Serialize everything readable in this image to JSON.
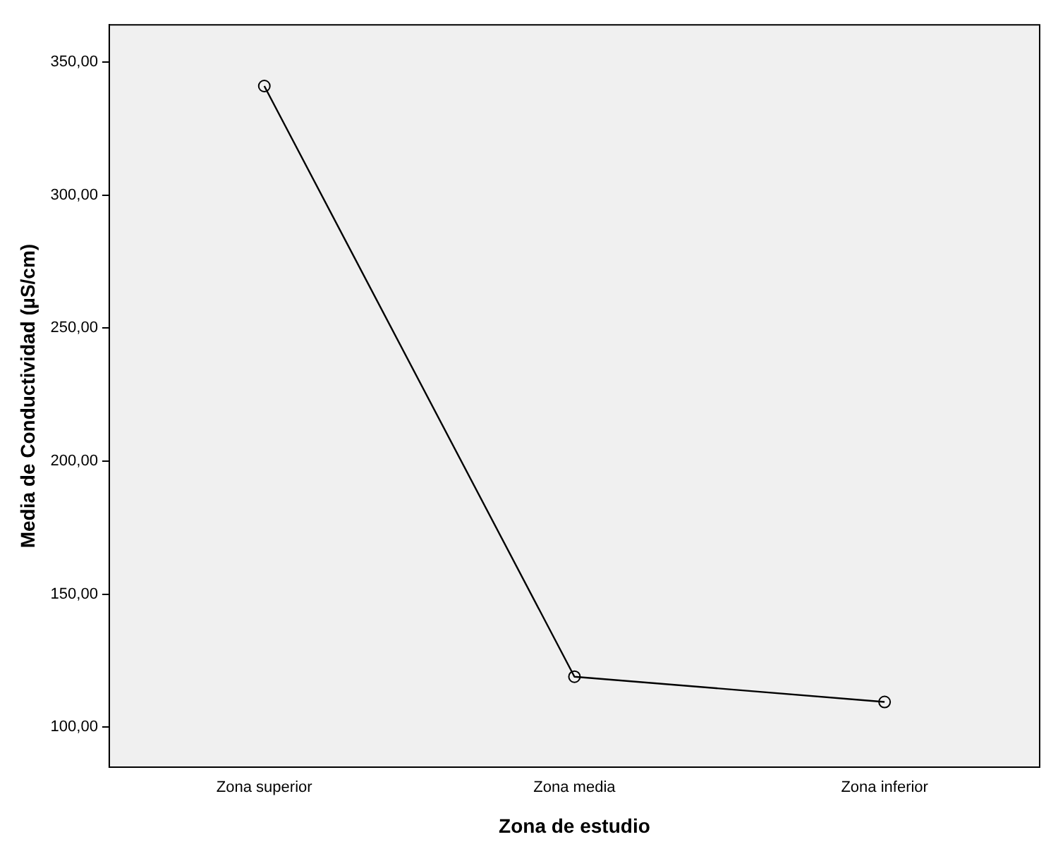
{
  "chart_data": {
    "type": "line",
    "xlabel": "Zona de estudio",
    "ylabel": "Media de Conductividad (µS/cm)",
    "categories": [
      "Zona superior",
      "Zona media",
      "Zona inferior"
    ],
    "series": [
      {
        "color": "#000000",
        "values": [
          341,
          119,
          109.5
        ]
      }
    ],
    "ylim": [
      85,
      364
    ],
    "yticks": [
      {
        "value": 100,
        "label": "100,00"
      },
      {
        "value": 150,
        "label": "150,00"
      },
      {
        "value": 200,
        "label": "200,00"
      },
      {
        "value": 250,
        "label": "250,00"
      },
      {
        "value": 300,
        "label": "300,00"
      },
      {
        "value": 350,
        "label": "350,00"
      }
    ],
    "grid": false,
    "legend": false,
    "marker": "circle",
    "line_style": "solid"
  }
}
